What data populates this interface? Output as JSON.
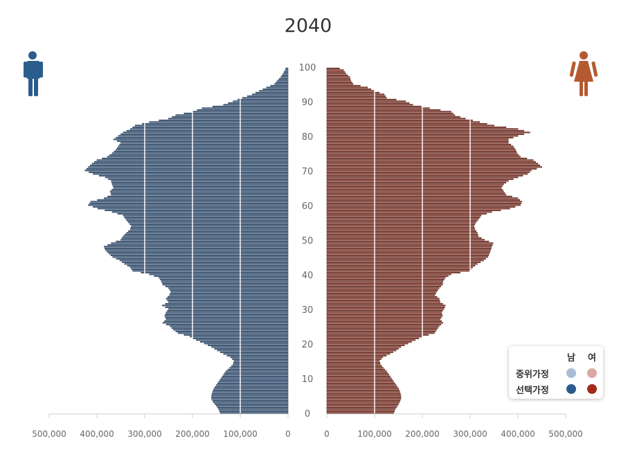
{
  "chart_data": {
    "type": "population-pyramid",
    "title": "2040",
    "xlim": [
      0,
      500000
    ],
    "age_range": [
      0,
      100
    ],
    "left_axis_ticks": [
      "500,000",
      "400,000",
      "300,000",
      "200,000",
      "100,000",
      "0"
    ],
    "right_axis_ticks": [
      "0",
      "100,000",
      "200,000",
      "300,000",
      "400,000",
      "500,000"
    ],
    "age_ticks": [
      "0",
      "10",
      "20",
      "30",
      "40",
      "50",
      "60",
      "70",
      "80",
      "90",
      "100"
    ],
    "male_anchors": [
      [
        0,
        142000
      ],
      [
        1,
        145000
      ],
      [
        2,
        150000
      ],
      [
        3,
        156000
      ],
      [
        4,
        160000
      ],
      [
        5,
        160000
      ],
      [
        6,
        158000
      ],
      [
        7,
        155000
      ],
      [
        8,
        150000
      ],
      [
        9,
        145000
      ],
      [
        10,
        140000
      ],
      [
        11,
        135000
      ],
      [
        12,
        130000
      ],
      [
        13,
        122000
      ],
      [
        14,
        115000
      ],
      [
        15,
        113000
      ],
      [
        16,
        120000
      ],
      [
        17,
        135000
      ],
      [
        18,
        148000
      ],
      [
        19,
        160000
      ],
      [
        20,
        175000
      ],
      [
        21,
        192000
      ],
      [
        22,
        205000
      ],
      [
        23,
        230000
      ],
      [
        24,
        240000
      ],
      [
        25,
        247000
      ],
      [
        26,
        262000
      ],
      [
        27,
        255000
      ],
      [
        28,
        258000
      ],
      [
        29,
        255000
      ],
      [
        30,
        250000
      ],
      [
        31,
        263000
      ],
      [
        32,
        250000
      ],
      [
        33,
        255000
      ],
      [
        34,
        248000
      ],
      [
        35,
        245000
      ],
      [
        36,
        250000
      ],
      [
        37,
        262000
      ],
      [
        38,
        265000
      ],
      [
        39,
        270000
      ],
      [
        40,
        290000
      ],
      [
        41,
        325000
      ],
      [
        42,
        330000
      ],
      [
        43,
        342000
      ],
      [
        44,
        352000
      ],
      [
        45,
        367000
      ],
      [
        46,
        375000
      ],
      [
        47,
        382000
      ],
      [
        48,
        385000
      ],
      [
        49,
        370000
      ],
      [
        50,
        350000
      ],
      [
        51,
        345000
      ],
      [
        52,
        338000
      ],
      [
        53,
        330000
      ],
      [
        54,
        328000
      ],
      [
        55,
        334000
      ],
      [
        56,
        340000
      ],
      [
        57,
        345000
      ],
      [
        58,
        368000
      ],
      [
        59,
        398000
      ],
      [
        60,
        418000
      ],
      [
        61,
        413000
      ],
      [
        62,
        385000
      ],
      [
        63,
        370000
      ],
      [
        64,
        372000
      ],
      [
        65,
        365000
      ],
      [
        66,
        368000
      ],
      [
        67,
        370000
      ],
      [
        68,
        382000
      ],
      [
        69,
        408000
      ],
      [
        70,
        425000
      ],
      [
        71,
        418000
      ],
      [
        72,
        410000
      ],
      [
        73,
        400000
      ],
      [
        74,
        378000
      ],
      [
        75,
        368000
      ],
      [
        76,
        360000
      ],
      [
        77,
        355000
      ],
      [
        78,
        350000
      ],
      [
        79,
        365000
      ],
      [
        80,
        355000
      ],
      [
        81,
        345000
      ],
      [
        82,
        330000
      ],
      [
        83,
        320000
      ],
      [
        84,
        290000
      ],
      [
        85,
        250000
      ],
      [
        86,
        235000
      ],
      [
        87,
        200000
      ],
      [
        88,
        180000
      ],
      [
        89,
        135000
      ],
      [
        90,
        115000
      ],
      [
        91,
        95000
      ],
      [
        92,
        75000
      ],
      [
        93,
        60000
      ],
      [
        94,
        45000
      ],
      [
        95,
        28000
      ],
      [
        96,
        22000
      ],
      [
        97,
        15000
      ],
      [
        98,
        10000
      ],
      [
        99,
        6000
      ],
      [
        100,
        3000
      ]
    ],
    "female_anchors": [
      [
        0,
        140000
      ],
      [
        1,
        143000
      ],
      [
        2,
        148000
      ],
      [
        3,
        152000
      ],
      [
        4,
        155000
      ],
      [
        5,
        155000
      ],
      [
        6,
        153000
      ],
      [
        7,
        150000
      ],
      [
        8,
        145000
      ],
      [
        9,
        140000
      ],
      [
        10,
        135000
      ],
      [
        11,
        130000
      ],
      [
        12,
        125000
      ],
      [
        13,
        118000
      ],
      [
        14,
        112000
      ],
      [
        15,
        110000
      ],
      [
        16,
        117000
      ],
      [
        17,
        132000
      ],
      [
        18,
        145000
      ],
      [
        19,
        155000
      ],
      [
        20,
        170000
      ],
      [
        21,
        185000
      ],
      [
        22,
        200000
      ],
      [
        23,
        225000
      ],
      [
        24,
        230000
      ],
      [
        25,
        235000
      ],
      [
        26,
        243000
      ],
      [
        27,
        237000
      ],
      [
        28,
        242000
      ],
      [
        29,
        240000
      ],
      [
        30,
        245000
      ],
      [
        31,
        248000
      ],
      [
        32,
        237000
      ],
      [
        33,
        235000
      ],
      [
        34,
        226000
      ],
      [
        35,
        230000
      ],
      [
        36,
        235000
      ],
      [
        37,
        242000
      ],
      [
        38,
        243000
      ],
      [
        39,
        248000
      ],
      [
        40,
        260000
      ],
      [
        41,
        298000
      ],
      [
        42,
        305000
      ],
      [
        43,
        315000
      ],
      [
        44,
        328000
      ],
      [
        45,
        337000
      ],
      [
        46,
        340000
      ],
      [
        47,
        343000
      ],
      [
        48,
        345000
      ],
      [
        49,
        348000
      ],
      [
        50,
        330000
      ],
      [
        51,
        317000
      ],
      [
        52,
        315000
      ],
      [
        53,
        310000
      ],
      [
        54,
        308000
      ],
      [
        55,
        312000
      ],
      [
        56,
        318000
      ],
      [
        57,
        323000
      ],
      [
        58,
        345000
      ],
      [
        59,
        383000
      ],
      [
        60,
        405000
      ],
      [
        61,
        408000
      ],
      [
        62,
        400000
      ],
      [
        63,
        375000
      ],
      [
        64,
        370000
      ],
      [
        65,
        365000
      ],
      [
        66,
        370000
      ],
      [
        67,
        380000
      ],
      [
        68,
        400000
      ],
      [
        69,
        420000
      ],
      [
        70,
        428000
      ],
      [
        71,
        450000
      ],
      [
        72,
        442000
      ],
      [
        73,
        432000
      ],
      [
        74,
        405000
      ],
      [
        75,
        398000
      ],
      [
        76,
        395000
      ],
      [
        77,
        390000
      ],
      [
        78,
        380000
      ],
      [
        79,
        380000
      ],
      [
        80,
        400000
      ],
      [
        81,
        425000
      ],
      [
        82,
        400000
      ],
      [
        83,
        350000
      ],
      [
        84,
        320000
      ],
      [
        85,
        290000
      ],
      [
        86,
        268000
      ],
      [
        87,
        260000
      ],
      [
        88,
        215000
      ],
      [
        89,
        180000
      ],
      [
        90,
        165000
      ],
      [
        91,
        125000
      ],
      [
        92,
        120000
      ],
      [
        93,
        100000
      ],
      [
        94,
        85000
      ],
      [
        95,
        55000
      ],
      [
        96,
        50000
      ],
      [
        97,
        48000
      ],
      [
        98,
        40000
      ],
      [
        99,
        35000
      ],
      [
        100,
        18000
      ]
    ],
    "bars_per_year": 2,
    "colors": {
      "male_fill": "#5582b6",
      "male_edge": "#22344a",
      "female_fill": "#c95141",
      "female_edge": "#4a2017",
      "gridline": "#ffffff",
      "axis": "#cccccc"
    }
  },
  "icons": {
    "male": "male-figure-icon",
    "female": "female-figure-icon",
    "male_color": "#2b5d8c",
    "female_color": "#b55a30"
  },
  "legend": {
    "col_male": "남",
    "col_female": "여",
    "rows": [
      {
        "label": "중위가정",
        "male_color": "#a9bdd6",
        "female_color": "#dca79f"
      },
      {
        "label": "선택가정",
        "male_color": "#2b5b8c",
        "female_color": "#a3291a"
      }
    ]
  }
}
